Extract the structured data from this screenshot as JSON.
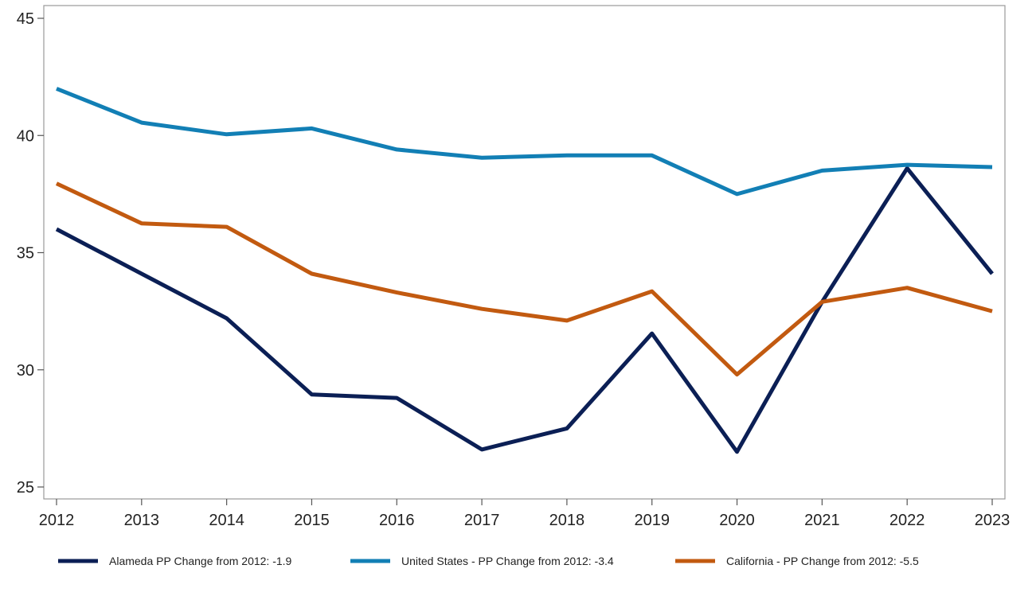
{
  "chart_data": {
    "type": "line",
    "x": [
      2012,
      2013,
      2014,
      2015,
      2016,
      2017,
      2018,
      2019,
      2020,
      2021,
      2022,
      2023
    ],
    "ylim": [
      25,
      45
    ],
    "yticks": [
      25,
      30,
      35,
      40,
      45
    ],
    "xlabel": "",
    "ylabel": "",
    "title": "",
    "grid": false,
    "legend_position": "bottom",
    "series": [
      {
        "name": "Alameda PP Change from 2012: -1.9",
        "color": "#0b1f55",
        "values": [
          36.0,
          34.1,
          32.2,
          28.95,
          28.8,
          26.6,
          27.5,
          31.55,
          26.5,
          32.9,
          38.6,
          34.1
        ]
      },
      {
        "name": "United States - PP Change from 2012: -3.4",
        "color": "#127fb5",
        "values": [
          42.0,
          40.55,
          40.05,
          40.3,
          39.4,
          39.05,
          39.15,
          39.15,
          37.5,
          38.5,
          38.75,
          38.65
        ]
      },
      {
        "name": "California - PP Change from 2012: -5.5",
        "color": "#c25a10",
        "values": [
          37.95,
          36.25,
          36.1,
          34.1,
          33.3,
          32.6,
          32.1,
          33.35,
          29.8,
          32.9,
          33.5,
          32.5
        ]
      }
    ]
  }
}
